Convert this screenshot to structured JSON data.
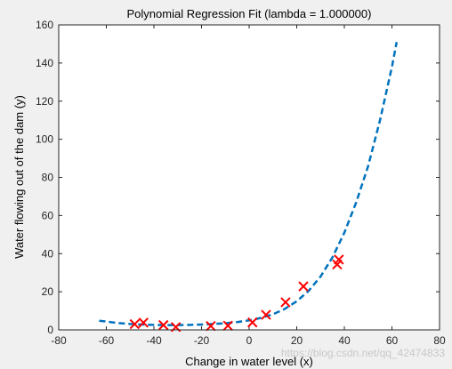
{
  "chart_data": {
    "type": "scatter",
    "title": "Polynomial Regression Fit (lambda = 1.000000)",
    "xlabel": "Change in water level (x)",
    "ylabel": "Water flowing out of the dam (y)",
    "xlim": [
      -80,
      80
    ],
    "ylim": [
      0,
      160
    ],
    "xticks": [
      -80,
      -60,
      -40,
      -20,
      0,
      20,
      40,
      60,
      80
    ],
    "yticks": [
      0,
      20,
      40,
      60,
      80,
      100,
      120,
      140,
      160
    ],
    "grid": false,
    "series": [
      {
        "type": "scatter",
        "marker": "x",
        "color": "#ff0000",
        "x": [
          -48.1,
          -44.4,
          -36.0,
          -30.8,
          -16.1,
          -8.9,
          1.4,
          7.1,
          15.3,
          22.8,
          37.0,
          37.7
        ],
        "y": [
          3.0,
          3.8,
          2.5,
          1.5,
          2.0,
          2.2,
          3.9,
          7.9,
          14.5,
          22.8,
          34.3,
          36.9
        ]
      },
      {
        "type": "line",
        "style": "dashed",
        "color": "#0072bd",
        "x": [
          -63,
          -55,
          -50,
          -45,
          -40,
          -35,
          -30,
          -25,
          -20,
          -15,
          -10,
          -5,
          0,
          5,
          10,
          15,
          20,
          25,
          30,
          35,
          40,
          45,
          50,
          55,
          60,
          62
        ],
        "y": [
          4.8,
          3.6,
          3.1,
          2.8,
          2.6,
          2.5,
          2.5,
          2.6,
          2.8,
          3.1,
          3.5,
          4.1,
          5.0,
          6.3,
          8.2,
          11.0,
          15.0,
          20.5,
          28.0,
          38.0,
          51.0,
          67.0,
          86.0,
          110.0,
          138.0,
          151.0
        ]
      }
    ]
  },
  "watermark": "https://blog.csdn.net/qq_42474833"
}
